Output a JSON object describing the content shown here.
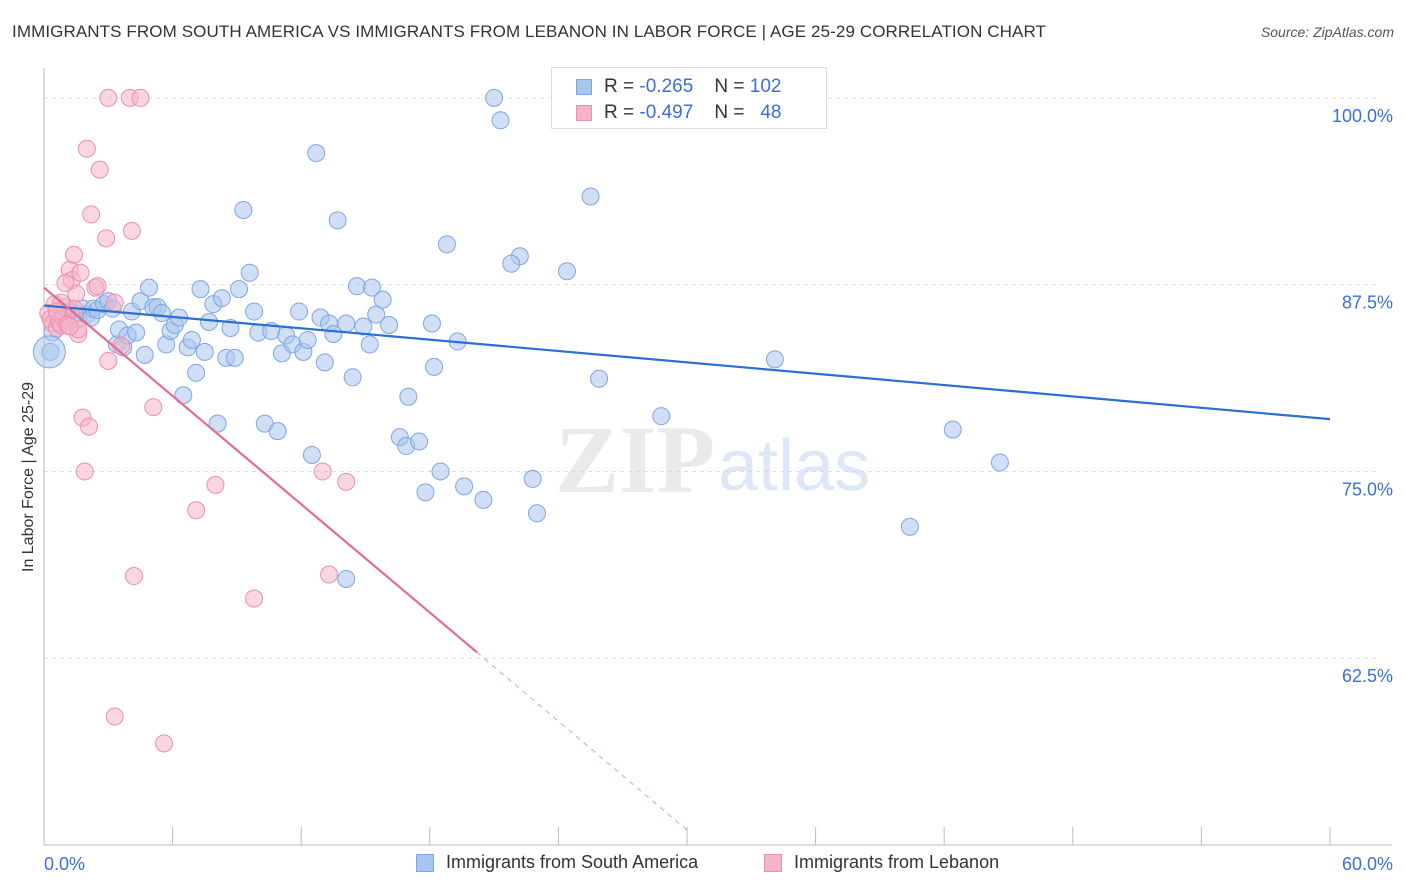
{
  "title": "IMMIGRANTS FROM SOUTH AMERICA VS IMMIGRANTS FROM LEBANON IN LABOR FORCE | AGE 25-29 CORRELATION CHART",
  "source": "Source: ZipAtlas.com",
  "watermark": {
    "zip": "ZIP",
    "atlas": "atlas"
  },
  "legend_top": [
    {
      "r_label": "R =",
      "r_value": "-0.265",
      "n_label": "N =",
      "n_value": "102",
      "color": "#a9c4ef"
    },
    {
      "r_label": "R =",
      "r_value": "-0.497",
      "n_label": "N =",
      "n_value": "48",
      "color": "#f5b4c8"
    }
  ],
  "colors": {
    "blue_fill": "#a9c4ef",
    "blue_stroke": "#7ea6e3",
    "blue_line": "#2a6fd1",
    "pink_fill": "#f5b4c8",
    "pink_stroke": "#ec8fae",
    "pink_line": "#e46b96",
    "axis_text": "#3a6fd8",
    "grid": "#dddddd"
  },
  "chart_data": {
    "type": "scatter",
    "title": "IMMIGRANTS FROM SOUTH AMERICA VS IMMIGRANTS FROM LEBANON IN LABOR FORCE | AGE 25-29 CORRELATION CHART",
    "xlabel": "",
    "ylabel": "In Labor Force | Age 25-29",
    "xlim": [
      0,
      60
    ],
    "ylim": [
      50,
      102
    ],
    "x_tick_labels": [
      {
        "value": 0,
        "label": "0.0%"
      },
      {
        "value": 60,
        "label": "60.0%"
      }
    ],
    "y_tick_labels": [
      {
        "value": 100,
        "label": "100.0%"
      },
      {
        "value": 87.5,
        "label": "87.5%"
      },
      {
        "value": 75,
        "label": "75.0%"
      },
      {
        "value": 62.5,
        "label": "62.5%"
      }
    ],
    "series": [
      {
        "name": "Immigrants from South America",
        "color": "blue",
        "trend": {
          "x0": 0,
          "y0": 86.1,
          "x1": 60,
          "y1": 78.5
        },
        "points": [
          [
            0.3,
            83.0
          ],
          [
            0.4,
            84.3
          ],
          [
            0.6,
            85.3
          ],
          [
            0.8,
            84.8
          ],
          [
            1.0,
            85.5
          ],
          [
            1.2,
            85.7
          ],
          [
            1.4,
            85.6
          ],
          [
            1.6,
            85.2
          ],
          [
            1.8,
            85.9
          ],
          [
            2.0,
            85.5
          ],
          [
            2.2,
            85.3
          ],
          [
            2.3,
            85.9
          ],
          [
            2.5,
            85.8
          ],
          [
            2.8,
            86.2
          ],
          [
            3.0,
            86.4
          ],
          [
            3.2,
            85.9
          ],
          [
            3.4,
            83.5
          ],
          [
            3.5,
            84.5
          ],
          [
            3.7,
            83.3
          ],
          [
            3.9,
            84.1
          ],
          [
            4.1,
            85.7
          ],
          [
            4.3,
            84.3
          ],
          [
            4.5,
            86.4
          ],
          [
            4.7,
            82.8
          ],
          [
            4.9,
            87.3
          ],
          [
            5.1,
            86.0
          ],
          [
            5.3,
            86.0
          ],
          [
            5.5,
            85.6
          ],
          [
            5.7,
            83.5
          ],
          [
            5.9,
            84.4
          ],
          [
            6.1,
            84.8
          ],
          [
            6.3,
            85.3
          ],
          [
            6.5,
            80.1
          ],
          [
            6.7,
            83.3
          ],
          [
            6.9,
            83.8
          ],
          [
            7.1,
            81.6
          ],
          [
            7.3,
            87.2
          ],
          [
            7.5,
            83.0
          ],
          [
            7.7,
            85.0
          ],
          [
            7.9,
            86.2
          ],
          [
            8.1,
            78.2
          ],
          [
            8.3,
            86.6
          ],
          [
            8.5,
            82.6
          ],
          [
            8.7,
            84.6
          ],
          [
            8.9,
            82.6
          ],
          [
            9.1,
            87.2
          ],
          [
            9.3,
            92.5
          ],
          [
            9.6,
            88.3
          ],
          [
            9.8,
            85.7
          ],
          [
            10.0,
            84.3
          ],
          [
            10.3,
            78.2
          ],
          [
            10.6,
            84.4
          ],
          [
            10.9,
            77.7
          ],
          [
            11.1,
            82.9
          ],
          [
            11.3,
            84.1
          ],
          [
            11.6,
            83.5
          ],
          [
            11.9,
            85.7
          ],
          [
            12.1,
            83.0
          ],
          [
            12.3,
            83.8
          ],
          [
            12.5,
            76.1
          ],
          [
            12.7,
            96.3
          ],
          [
            12.9,
            85.3
          ],
          [
            13.1,
            82.3
          ],
          [
            13.3,
            84.9
          ],
          [
            13.5,
            84.2
          ],
          [
            13.7,
            91.8
          ],
          [
            14.1,
            84.9
          ],
          [
            14.4,
            81.3
          ],
          [
            14.6,
            87.4
          ],
          [
            14.9,
            84.7
          ],
          [
            15.2,
            83.5
          ],
          [
            15.5,
            85.5
          ],
          [
            15.8,
            86.5
          ],
          [
            16.1,
            84.8
          ],
          [
            16.6,
            77.3
          ],
          [
            16.9,
            76.7
          ],
          [
            17.0,
            80.0
          ],
          [
            17.5,
            77.0
          ],
          [
            17.8,
            73.6
          ],
          [
            18.1,
            84.9
          ],
          [
            18.5,
            75.0
          ],
          [
            18.8,
            90.2
          ],
          [
            19.3,
            83.7
          ],
          [
            19.6,
            74.0
          ],
          [
            20.5,
            73.1
          ],
          [
            21.0,
            100.0
          ],
          [
            21.3,
            98.5
          ],
          [
            22.2,
            89.4
          ],
          [
            22.8,
            74.5
          ],
          [
            23.0,
            72.2
          ],
          [
            25.5,
            93.4
          ],
          [
            25.9,
            81.2
          ],
          [
            28.8,
            78.7
          ],
          [
            34.1,
            82.5
          ],
          [
            40.4,
            71.3
          ],
          [
            42.4,
            77.8
          ],
          [
            44.6,
            75.6
          ],
          [
            24.4,
            88.4
          ],
          [
            21.8,
            88.9
          ],
          [
            15.3,
            87.3
          ],
          [
            14.1,
            67.8
          ],
          [
            18.2,
            82.0
          ]
        ]
      },
      {
        "name": "Immigrants from Lebanon",
        "color": "pink",
        "trend": {
          "x0": 0,
          "y0": 87.3,
          "x1": 20.2,
          "y1": 62.9
        },
        "trend_dashed": {
          "x0": 20.2,
          "y0": 62.9,
          "x1": 30.0,
          "y1": 51.0
        },
        "points": [
          [
            0.2,
            85.6
          ],
          [
            0.3,
            85.2
          ],
          [
            0.4,
            84.9
          ],
          [
            0.5,
            86.2
          ],
          [
            0.6,
            84.6
          ],
          [
            0.7,
            85.0
          ],
          [
            0.8,
            84.8
          ],
          [
            0.9,
            85.3
          ],
          [
            1.0,
            86.0
          ],
          [
            1.1,
            84.8
          ],
          [
            1.2,
            88.5
          ],
          [
            1.3,
            87.8
          ],
          [
            1.4,
            89.5
          ],
          [
            1.5,
            86.9
          ],
          [
            1.6,
            84.2
          ],
          [
            1.7,
            88.3
          ],
          [
            1.8,
            78.6
          ],
          [
            1.9,
            75.0
          ],
          [
            2.0,
            96.6
          ],
          [
            2.2,
            92.2
          ],
          [
            2.4,
            87.3
          ],
          [
            2.6,
            95.2
          ],
          [
            2.9,
            90.6
          ],
          [
            3.0,
            82.4
          ],
          [
            3.3,
            86.3
          ],
          [
            3.6,
            83.4
          ],
          [
            3.0,
            100.0
          ],
          [
            4.0,
            100.0
          ],
          [
            4.5,
            100.0
          ],
          [
            4.1,
            91.1
          ],
          [
            5.1,
            79.3
          ],
          [
            4.2,
            68.0
          ],
          [
            3.3,
            58.6
          ],
          [
            5.6,
            56.8
          ],
          [
            1.6,
            84.5
          ],
          [
            2.1,
            78.0
          ],
          [
            7.1,
            72.4
          ],
          [
            8.0,
            74.1
          ],
          [
            9.8,
            66.5
          ],
          [
            13.0,
            75.0
          ],
          [
            13.3,
            68.1
          ],
          [
            14.1,
            74.3
          ],
          [
            1.4,
            85.9
          ],
          [
            0.8,
            86.3
          ],
          [
            1.0,
            87.6
          ],
          [
            2.5,
            87.4
          ],
          [
            1.2,
            84.7
          ],
          [
            0.6,
            85.7
          ]
        ]
      }
    ]
  },
  "legend_bottom": [
    {
      "label": "Immigrants from South America",
      "color": "#a9c4ef"
    },
    {
      "label": "Immigrants from Lebanon",
      "color": "#f5b4c8"
    }
  ]
}
